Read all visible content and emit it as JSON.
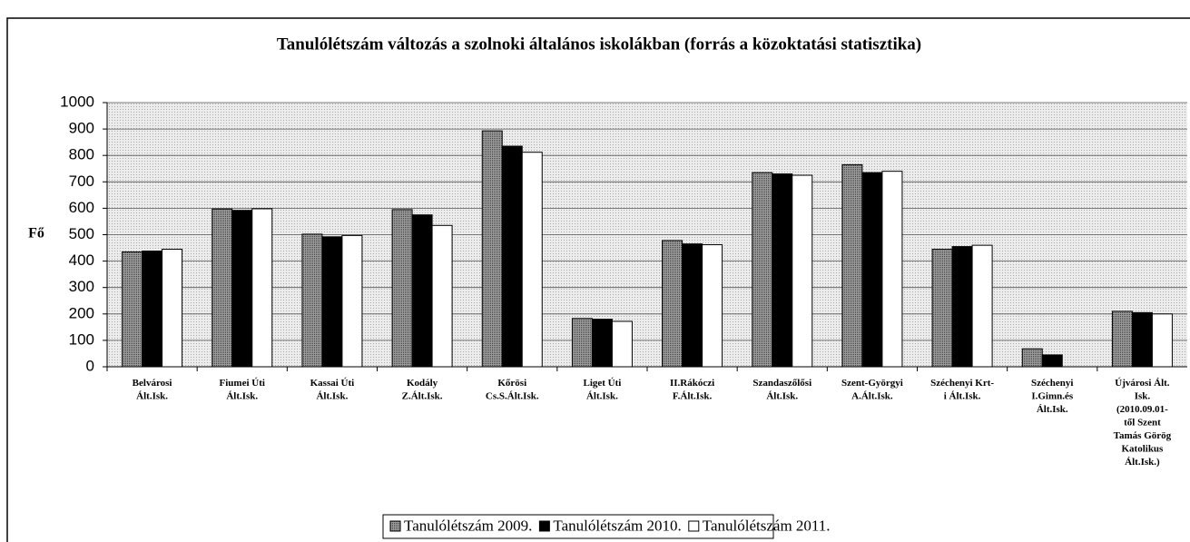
{
  "chart_data": {
    "type": "bar",
    "title": "Tanulólétszám változás a szolnoki általános iskolákban (forrás a közoktatási statisztika)",
    "y_label": "Fő",
    "categories": [
      [
        "Belvárosi",
        "Ált.Isk."
      ],
      [
        "Fiumei Úti",
        "Ált.Isk."
      ],
      [
        "Kassai Úti",
        "Ált.Isk."
      ],
      [
        "Kodály",
        "Z.Ált.Isk."
      ],
      [
        "Kőrösi",
        "Cs.S.Ált.Isk."
      ],
      [
        "Liget Úti",
        "Ált.Isk."
      ],
      [
        "II.Rákóczi",
        "F.Ált.Isk."
      ],
      [
        "Szandaszőlősi",
        "Ált.Isk."
      ],
      [
        "Szent-Györgyi",
        "A.Ált.Isk."
      ],
      [
        "Széchenyi Krt-",
        "i Ált.Isk."
      ],
      [
        "Széchenyi",
        "I.Gimn.és",
        "Ált.Isk."
      ],
      [
        "Újvárosi Ált.",
        "Isk.",
        "(2010.09.01-",
        "től Szent",
        "Tamás Görög",
        "Katolikus",
        "Ált.Isk.)"
      ]
    ],
    "series": [
      {
        "name": "Tanulólétszám 2009.",
        "color": "#7f7f7f",
        "values": [
          435,
          597,
          502,
          595,
          893,
          183,
          478,
          735,
          765,
          445,
          68,
          210
        ]
      },
      {
        "name": "Tanulólétszám 2010.",
        "color": "#000000",
        "values": [
          438,
          592,
          492,
          575,
          835,
          180,
          465,
          730,
          735,
          455,
          45,
          205
        ]
      },
      {
        "name": "Tanulólétszám 2011.",
        "color": "#ffffff",
        "values": [
          445,
          598,
          497,
          535,
          812,
          172,
          462,
          725,
          740,
          460,
          null,
          200
        ]
      }
    ],
    "ylim": [
      0,
      1000
    ],
    "yticks": [
      0,
      100,
      200,
      300,
      400,
      500,
      600,
      700,
      800,
      900,
      1000
    ],
    "grid": true
  }
}
